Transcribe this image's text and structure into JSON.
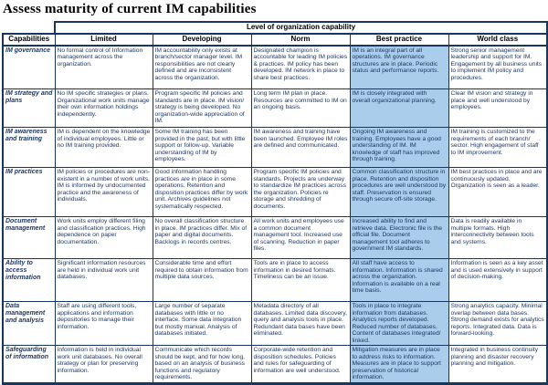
{
  "title": "Assess maturity of current IM capabilities",
  "colors": {
    "highlight": "#A9CDEB",
    "border": "#17375E",
    "body_text": "#1F3864"
  },
  "table": {
    "header_group": "Level of organization capability",
    "columns": [
      "Capabilities",
      "Limited",
      "Developing",
      "Norm",
      "Best practice",
      "World class"
    ],
    "highlighted_column": "Best practice",
    "rows": [
      {
        "capability": "IM governance",
        "cells": [
          "No formal control of Information management across the organization.",
          "IM accountability only exists at branch/sector manager level. IM responsibilities are not clearly defined and are inconsistent across the organization.",
          "Designated champion is accountable for leading IM policies & practices. IM policy has been developed.  IM network in place to share best practices.",
          "IM is an integral part of all operations. IM governance structures are in place. Periodic status and performance reports.",
          "Strong senior management leadership and support for IM. Engagement by all business units to implement IM policy and procedures."
        ]
      },
      {
        "capability": "IM strategy and plans",
        "cells": [
          "No IM specific strategies or plans. Organizational work units manage their own information holdings independently.",
          "Program specific IM policies and standards are in place. IM vision/ strategy is being developed.  No organization-wide appreciation of IM.",
          "Long term IM plan in place. Resources are committed to IM on an ongoing basis.",
          "IM is closely integrated with overall organizational planning.",
          "Clear IM vision and strategy in place and well understood by employees."
        ]
      },
      {
        "capability": "IM awareness and training",
        "cells": [
          "IM is dependent on the knowledge of individual employees. Little or no IM training provided.",
          "Some IM training has been provided in the past, but with little support or follow-up. Variable understanding of IM by employees.",
          "IM awareness and training have been launched. Employee IM roles are defined and communicated.",
          "Ongoing IM awareness and training.  Employees have a good understanding of IM. IM knowledge of staff has improved through training.",
          "IM training is customized to the requirements of each branch/ sector. High engagement of staff to IM improvement."
        ]
      },
      {
        "capability": "IM practices",
        "cells": [
          "IM policies or procedures are non-existent in a number of work units. IM is informed by undocumented practice and the awareness of individuals.",
          "Good information handling practices are in place in some operations. Retention and disposition practices differ by work unit.  Archives guidelines not systematically respected.",
          "Program specific IM policies and standards.  Projects are underway to standardize IM practices across the organization. Policies re storage and shredding of documents.",
          "Common classification structure in place. Retention and disposition procedures are well understood by staff. Preservation is ensured through secure off-site storage.",
          "IM best practices in place and are continuously updated.  Organization is seen as a leader."
        ]
      },
      {
        "capability": "Document management",
        "cells": [
          "Work units employ different filing and classification practices. High dependence on paper documentation.",
          "No overall classification structure in place.  IM practices differ. Mix of paper and digital documents. Backlogs in records centres.",
          "All work units and employees use a common document management tool.  Increased use of scanning. Reduction in paper files.",
          "Increased ability to find and retrieve data. Electronic file is the official file. Document management tool adheres to government IM standards.",
          "Data is readily available in multiple formats. High interconnectivity between tools and systems."
        ]
      },
      {
        "capability": "Ability to access information",
        "cells": [
          "Significant information resources are held in individual work unit databases.",
          "Considerable time and effort required to obtain information from multiple data sources.",
          "Tools are in place to access information in desired formats.  Timeliness can be an issue.",
          "All staff have access to information. Information is shared across the organization. Information is available on a real time basis.",
          "Information is seen as a key asset and is used extensively in support of decision-making."
        ]
      },
      {
        "capability": "Data management and analysis",
        "cells": [
          "Staff are using different tools, applications and information depositories to manage their information.",
          "Large number of separate databases with little or no interface.  Some data integration but mostly manual. Analysis of databases initiated.",
          "Metadata directory of all databases. Limited data discovery, query and analysis tools in place. Redundant data bases have been eliminated.",
          "Tools in place to integrate information from databases. Analytics reports developed. Reduced number of databases. Content of databases integrated/ linked.",
          "Strong analytics capacity. Minimal overlap between data bases.  Strong demand exists for analytics reports. Integrated data. Data is forward-looking."
        ]
      },
      {
        "capability": "Safeguarding of information",
        "cells": [
          "Information is held in individual work unit databases.  No overall strategy or plan for preserving information.",
          "Communicate which records should be kept, and for how long, based on an analysis of business functions and regulatory requirements.",
          "Corporate-wide retention and disposition schedules. Policies and rules for safeguarding of information are well understood.",
          "Mitigation measures are in place to address risks to information. Measures are in place to support preservation of historical information.",
          "Integrated in business continuity planning and disaster recovery planning and mitigation."
        ]
      }
    ]
  }
}
